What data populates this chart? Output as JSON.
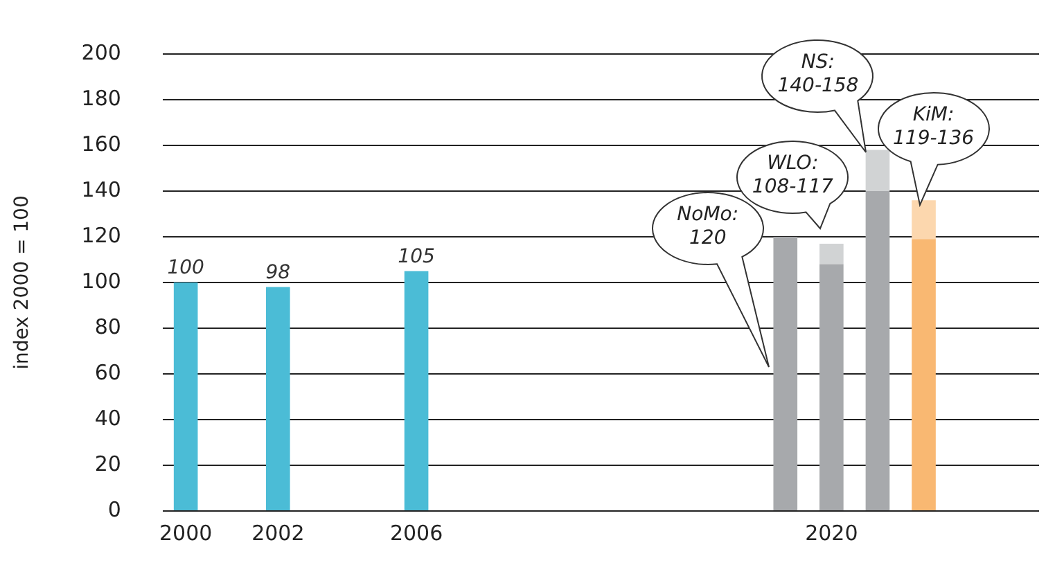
{
  "chart_data": {
    "type": "bar",
    "stacked": true,
    "ylabel": "index 2000 = 100",
    "categories": [
      "2000",
      null,
      "2002",
      null,
      null,
      "2006",
      null,
      null,
      null,
      null,
      null,
      null,
      null,
      null,
      "2020",
      null,
      null,
      null,
      null
    ],
    "series": [
      {
        "colors": [
          "#4bbcd6",
          null,
          "#4bbcd6",
          null,
          null,
          "#4bbcd6",
          null,
          null,
          null,
          null,
          null,
          null,
          null,
          "#a7a9ac",
          "#a7a9ac",
          "#a7a9ac",
          "#f9b872",
          null,
          null
        ],
        "values": [
          100,
          null,
          98,
          null,
          null,
          105,
          null,
          null,
          null,
          null,
          null,
          null,
          null,
          120,
          108,
          140,
          119,
          null,
          null
        ],
        "value_labels": [
          "100",
          null,
          "98",
          null,
          null,
          "105",
          null,
          null,
          null,
          null,
          null,
          null,
          null,
          null,
          null,
          null,
          null,
          null,
          null
        ]
      },
      {
        "colors": [
          null,
          null,
          null,
          null,
          null,
          null,
          null,
          null,
          null,
          null,
          null,
          null,
          null,
          null,
          "#d1d3d4",
          "#d1d3d4",
          "#fcd7ae",
          null,
          null
        ],
        "values": [
          null,
          null,
          null,
          null,
          null,
          null,
          null,
          null,
          null,
          null,
          null,
          null,
          null,
          null,
          9,
          18,
          17,
          null,
          null
        ]
      }
    ],
    "annotations": [
      "NoMo: 120",
      "WLO: 108-117",
      "NS: 140-158",
      "KiM: 119-136"
    ],
    "ylim": [
      0,
      200
    ],
    "yticks": [
      0,
      20,
      40,
      60,
      80,
      100,
      120,
      140,
      160,
      180,
      200
    ],
    "grid": "y",
    "legend": false
  }
}
